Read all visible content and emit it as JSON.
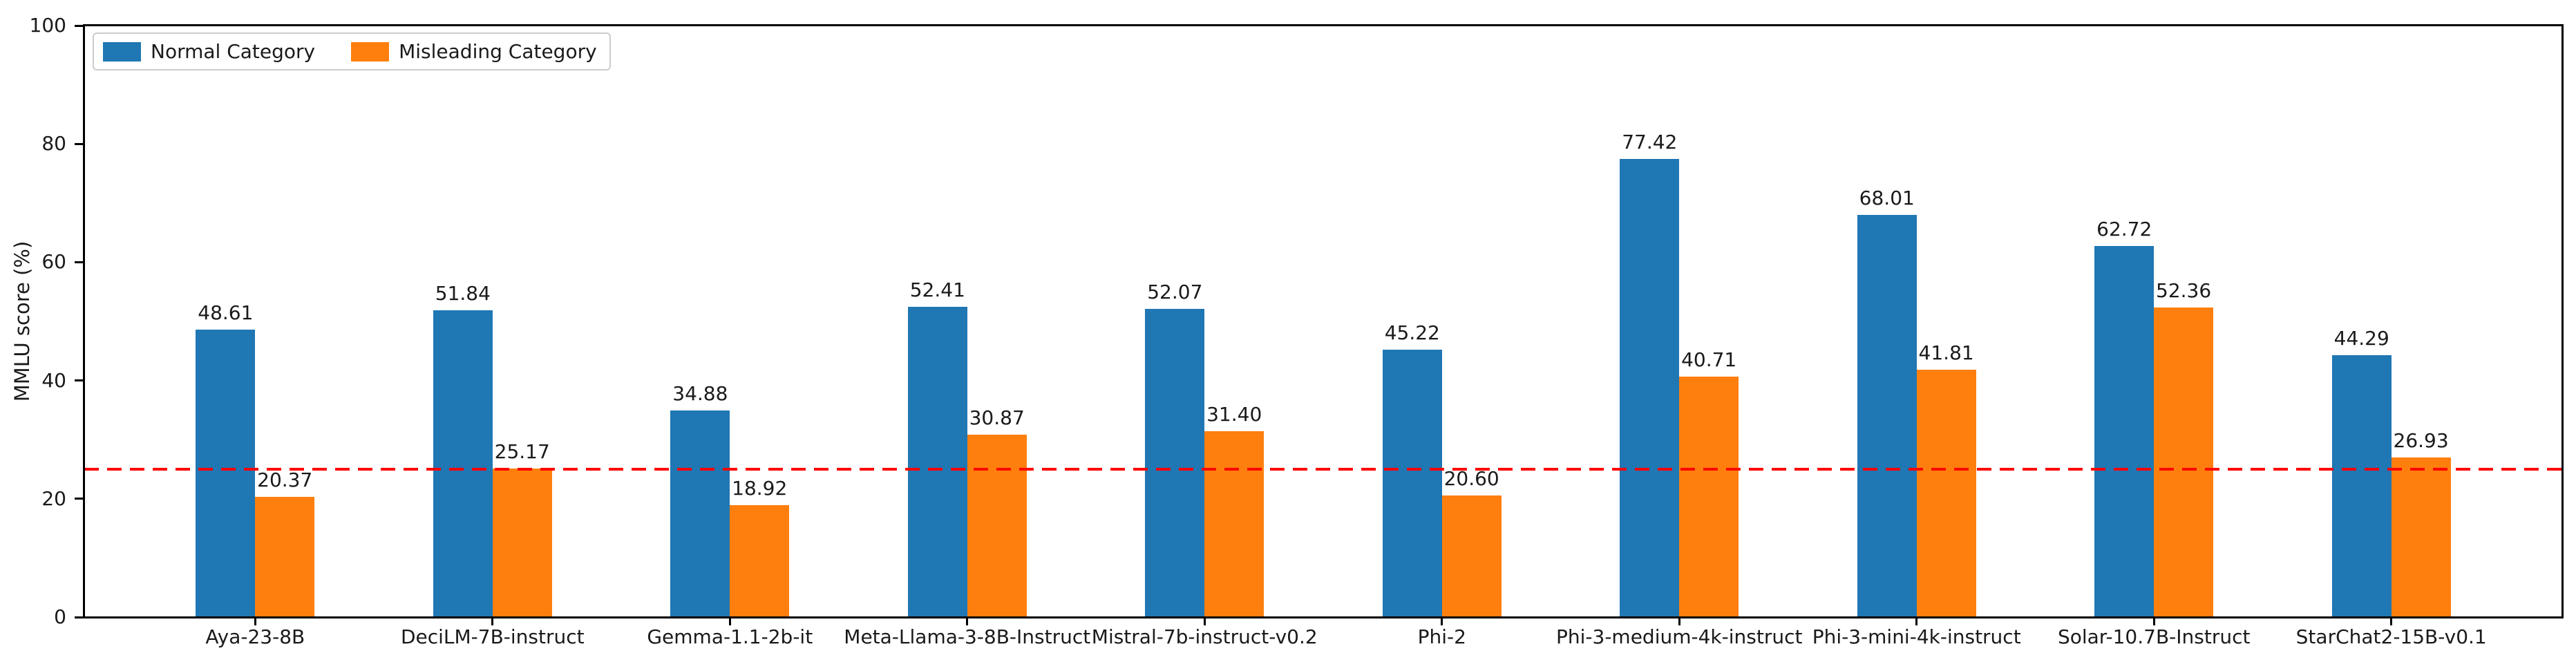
{
  "chart_data": {
    "type": "bar",
    "title": "",
    "xlabel": "",
    "ylabel": "MMLU score (%)",
    "ylim": [
      0,
      100
    ],
    "yticks": [
      0,
      20,
      40,
      60,
      80,
      100
    ],
    "grid": false,
    "legend_position": "upper left",
    "value_labels_decimals": 2,
    "categories": [
      "Aya-23-8B",
      "DeciLM-7B-instruct",
      "Gemma-1.1-2b-it",
      "Meta-Llama-3-8B-Instruct",
      "Mistral-7b-instruct-v0.2",
      "Phi-2",
      "Phi-3-medium-4k-instruct",
      "Phi-3-mini-4k-instruct",
      "Solar-10.7B-Instruct",
      "StarChat2-15B-v0.1"
    ],
    "series": [
      {
        "name": "Normal Category",
        "color": "#1f77b4",
        "values": [
          48.61,
          51.84,
          34.88,
          52.41,
          52.07,
          45.22,
          77.42,
          68.01,
          62.72,
          44.29
        ]
      },
      {
        "name": "Misleading Category",
        "color": "#ff7f0e",
        "values": [
          20.37,
          25.17,
          18.92,
          30.87,
          31.4,
          20.6,
          40.71,
          41.81,
          52.36,
          26.93
        ]
      }
    ],
    "reference_line": {
      "y": 25,
      "color": "#ff0000",
      "style": "dashed"
    },
    "axis_color": "#000000",
    "background_color": "#ffffff"
  }
}
